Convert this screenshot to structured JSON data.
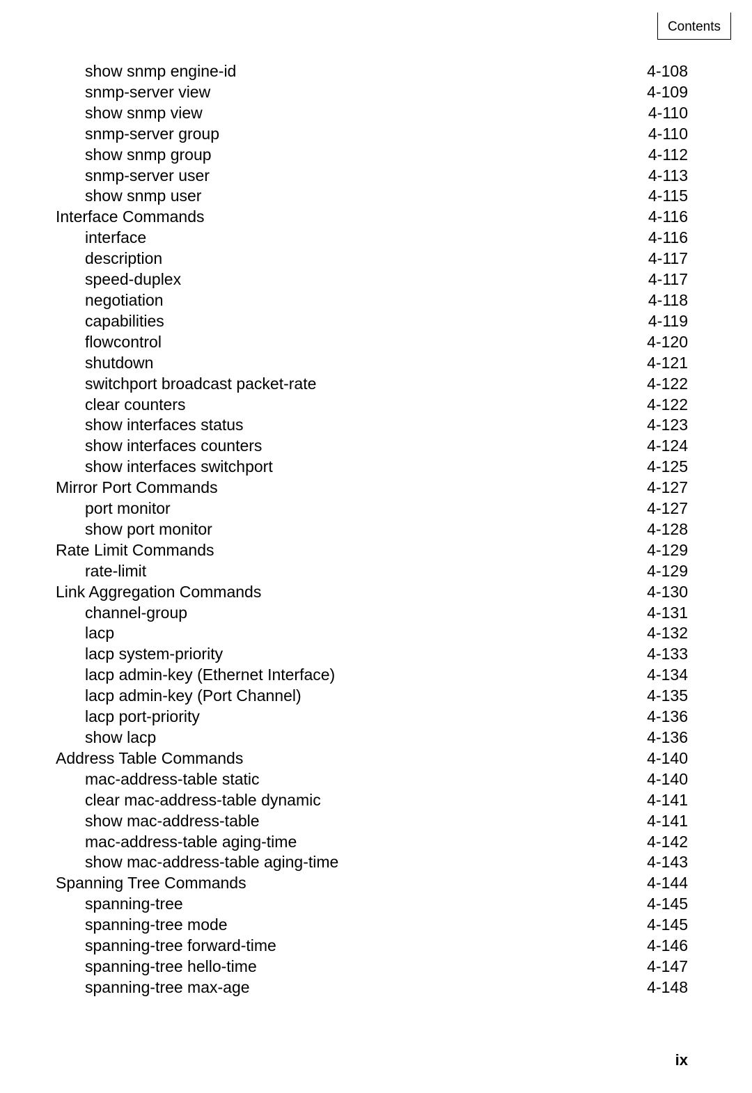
{
  "header": {
    "label": "Contents"
  },
  "footer": {
    "page": "ix"
  },
  "toc": {
    "entries": [
      {
        "label": "show snmp engine-id",
        "page": "4-108",
        "indent": 1
      },
      {
        "label": "snmp-server view",
        "page": "4-109",
        "indent": 1
      },
      {
        "label": "show snmp view",
        "page": "4-110",
        "indent": 1
      },
      {
        "label": "snmp-server group",
        "page": "4-110",
        "indent": 1
      },
      {
        "label": "show snmp group",
        "page": "4-112",
        "indent": 1
      },
      {
        "label": "snmp-server user",
        "page": "4-113",
        "indent": 1
      },
      {
        "label": "show snmp user",
        "page": "4-115",
        "indent": 1
      },
      {
        "label": "Interface Commands",
        "page": "4-116",
        "indent": 0
      },
      {
        "label": "interface",
        "page": "4-116",
        "indent": 1
      },
      {
        "label": "description",
        "page": "4-117",
        "indent": 1
      },
      {
        "label": "speed-duplex",
        "page": "4-117",
        "indent": 1
      },
      {
        "label": "negotiation",
        "page": "4-118",
        "indent": 1
      },
      {
        "label": "capabilities",
        "page": "4-119",
        "indent": 1
      },
      {
        "label": "flowcontrol",
        "page": "4-120",
        "indent": 1
      },
      {
        "label": "shutdown",
        "page": "4-121",
        "indent": 1
      },
      {
        "label": "switchport broadcast packet-rate",
        "page": "4-122",
        "indent": 1
      },
      {
        "label": "clear counters",
        "page": "4-122",
        "indent": 1
      },
      {
        "label": "show interfaces status",
        "page": "4-123",
        "indent": 1
      },
      {
        "label": "show interfaces counters",
        "page": "4-124",
        "indent": 1
      },
      {
        "label": "show interfaces switchport",
        "page": "4-125",
        "indent": 1
      },
      {
        "label": "Mirror Port Commands",
        "page": "4-127",
        "indent": 0
      },
      {
        "label": "port monitor",
        "page": "4-127",
        "indent": 1
      },
      {
        "label": "show port monitor",
        "page": "4-128",
        "indent": 1
      },
      {
        "label": "Rate Limit Commands",
        "page": "4-129",
        "indent": 0
      },
      {
        "label": "rate-limit",
        "page": "4-129",
        "indent": 1
      },
      {
        "label": "Link Aggregation Commands",
        "page": "4-130",
        "indent": 0
      },
      {
        "label": "channel-group",
        "page": "4-131",
        "indent": 1
      },
      {
        "label": "lacp",
        "page": "4-132",
        "indent": 1
      },
      {
        "label": "lacp system-priority",
        "page": "4-133",
        "indent": 1
      },
      {
        "label": "lacp admin-key (Ethernet Interface)",
        "page": "4-134",
        "indent": 1
      },
      {
        "label": "lacp admin-key (Port Channel)",
        "page": "4-135",
        "indent": 1
      },
      {
        "label": "lacp port-priority",
        "page": "4-136",
        "indent": 1
      },
      {
        "label": "show lacp",
        "page": "4-136",
        "indent": 1
      },
      {
        "label": "Address Table Commands",
        "page": "4-140",
        "indent": 0
      },
      {
        "label": "mac-address-table static",
        "page": "4-140",
        "indent": 1
      },
      {
        "label": "clear mac-address-table dynamic",
        "page": "4-141",
        "indent": 1
      },
      {
        "label": "show mac-address-table",
        "page": "4-141",
        "indent": 1
      },
      {
        "label": "mac-address-table aging-time",
        "page": "4-142",
        "indent": 1
      },
      {
        "label": "show mac-address-table aging-time",
        "page": "4-143",
        "indent": 1
      },
      {
        "label": "Spanning Tree Commands",
        "page": "4-144",
        "indent": 0
      },
      {
        "label": "spanning-tree",
        "page": "4-145",
        "indent": 1
      },
      {
        "label": "spanning-tree mode",
        "page": "4-145",
        "indent": 1
      },
      {
        "label": "spanning-tree forward-time",
        "page": "4-146",
        "indent": 1
      },
      {
        "label": "spanning-tree hello-time",
        "page": "4-147",
        "indent": 1
      },
      {
        "label": "spanning-tree max-age",
        "page": "4-148",
        "indent": 1
      }
    ]
  }
}
